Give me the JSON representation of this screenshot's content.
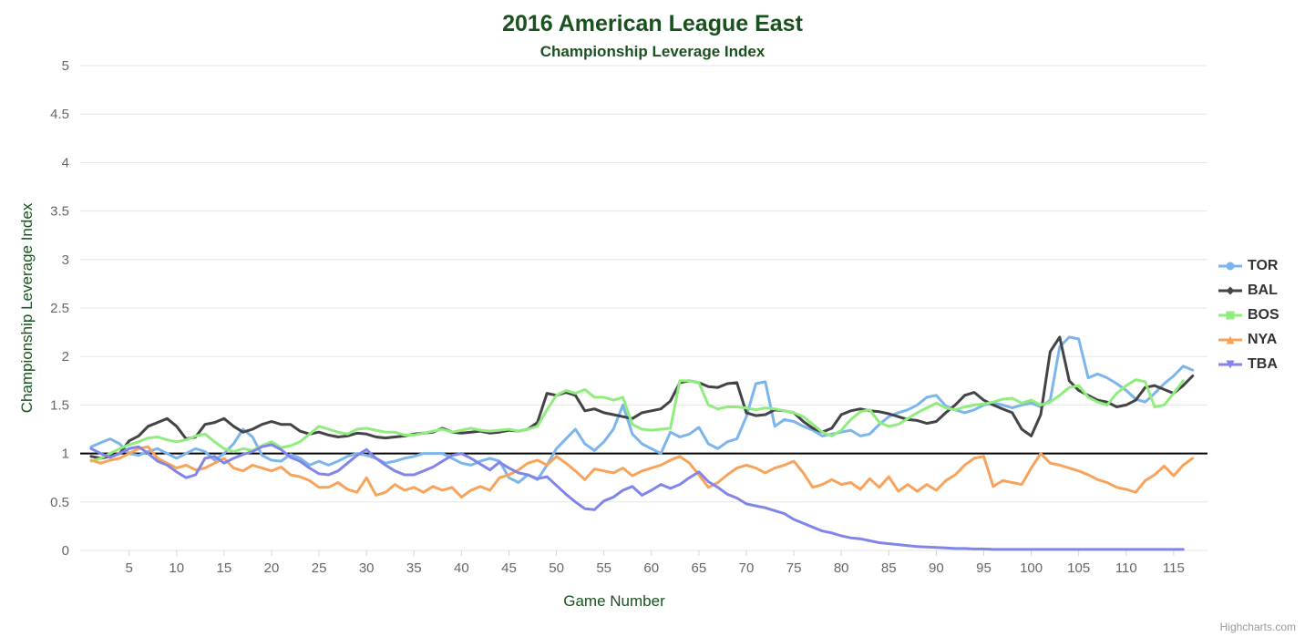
{
  "chart_data": {
    "type": "line",
    "title": "2016 American League East",
    "subtitle": "Championship Leverage Index",
    "xlabel": "Game Number",
    "ylabel": "Championship Leverage Index",
    "credit": "Highcharts.com",
    "x_start": 1,
    "x_step": 1,
    "xlim": [
      1,
      117
    ],
    "ylim": [
      0,
      5
    ],
    "x_ticks": [
      5,
      10,
      15,
      20,
      25,
      30,
      35,
      40,
      45,
      50,
      55,
      60,
      65,
      70,
      75,
      80,
      85,
      90,
      95,
      100,
      105,
      110,
      115
    ],
    "y_ticks": [
      0,
      0.5,
      1,
      1.5,
      2,
      2.5,
      3,
      3.5,
      4,
      4.5,
      5
    ],
    "grid": true,
    "legend_position": "right-middle",
    "plotline_y": 1,
    "plotline_color": "#000000",
    "grid_color": "#e6e6e6",
    "axis_color": "#ccd6eb",
    "tick_label_color": "#666666",
    "series": [
      {
        "name": "TOR",
        "color": "#7cb5ec",
        "marker": "circle",
        "values": [
          1.07,
          1.11,
          1.15,
          1.1,
          1.0,
          0.98,
          1.02,
          1.05,
          1.0,
          0.95,
          1.0,
          1.05,
          1.02,
          0.93,
          1.0,
          1.1,
          1.25,
          1.17,
          0.98,
          0.93,
          0.92,
          0.99,
          0.95,
          0.88,
          0.92,
          0.88,
          0.92,
          0.97,
          1.0,
          0.98,
          0.95,
          0.9,
          0.92,
          0.95,
          0.97,
          1.0,
          1.0,
          1.0,
          0.95,
          0.9,
          0.88,
          0.92,
          0.95,
          0.92,
          0.75,
          0.7,
          0.78,
          0.73,
          0.88,
          1.05,
          1.15,
          1.25,
          1.1,
          1.03,
          1.12,
          1.25,
          1.5,
          1.2,
          1.1,
          1.05,
          1.0,
          1.22,
          1.17,
          1.2,
          1.27,
          1.1,
          1.05,
          1.12,
          1.15,
          1.38,
          1.72,
          1.74,
          1.28,
          1.35,
          1.33,
          1.28,
          1.24,
          1.18,
          1.2,
          1.22,
          1.24,
          1.18,
          1.2,
          1.3,
          1.38,
          1.42,
          1.45,
          1.5,
          1.58,
          1.6,
          1.49,
          1.45,
          1.42,
          1.45,
          1.5,
          1.52,
          1.5,
          1.47,
          1.5,
          1.52,
          1.48,
          1.55,
          2.1,
          2.2,
          2.18,
          1.78,
          1.82,
          1.78,
          1.72,
          1.65,
          1.56,
          1.53,
          1.62,
          1.72,
          1.8,
          1.9,
          1.86
        ]
      },
      {
        "name": "BAL",
        "color": "#434348",
        "marker": "diamond",
        "values": [
          0.97,
          0.95,
          0.97,
          1.0,
          1.13,
          1.18,
          1.28,
          1.32,
          1.36,
          1.28,
          1.15,
          1.17,
          1.3,
          1.32,
          1.36,
          1.28,
          1.22,
          1.25,
          1.3,
          1.33,
          1.3,
          1.3,
          1.23,
          1.2,
          1.22,
          1.19,
          1.17,
          1.18,
          1.21,
          1.2,
          1.17,
          1.16,
          1.17,
          1.18,
          1.2,
          1.21,
          1.22,
          1.26,
          1.22,
          1.21,
          1.22,
          1.23,
          1.21,
          1.22,
          1.24,
          1.23,
          1.25,
          1.32,
          1.62,
          1.6,
          1.63,
          1.6,
          1.44,
          1.46,
          1.42,
          1.4,
          1.38,
          1.36,
          1.42,
          1.44,
          1.46,
          1.54,
          1.73,
          1.75,
          1.73,
          1.69,
          1.68,
          1.72,
          1.73,
          1.42,
          1.39,
          1.4,
          1.45,
          1.44,
          1.42,
          1.33,
          1.26,
          1.22,
          1.26,
          1.4,
          1.44,
          1.46,
          1.44,
          1.43,
          1.41,
          1.38,
          1.35,
          1.34,
          1.31,
          1.33,
          1.42,
          1.5,
          1.6,
          1.63,
          1.55,
          1.5,
          1.46,
          1.42,
          1.25,
          1.18,
          1.4,
          2.05,
          2.2,
          1.75,
          1.65,
          1.6,
          1.55,
          1.53,
          1.48,
          1.5,
          1.55,
          1.68,
          1.7,
          1.66,
          1.62,
          1.7,
          1.8
        ]
      },
      {
        "name": "BOS",
        "color": "#90ed7d",
        "marker": "square",
        "values": [
          0.92,
          0.95,
          1.0,
          1.05,
          1.09,
          1.12,
          1.16,
          1.17,
          1.14,
          1.12,
          1.14,
          1.18,
          1.2,
          1.12,
          1.05,
          1.02,
          1.05,
          1.03,
          1.08,
          1.12,
          1.06,
          1.08,
          1.12,
          1.2,
          1.28,
          1.25,
          1.22,
          1.2,
          1.25,
          1.26,
          1.24,
          1.22,
          1.22,
          1.19,
          1.19,
          1.21,
          1.23,
          1.25,
          1.22,
          1.24,
          1.26,
          1.24,
          1.23,
          1.24,
          1.25,
          1.23,
          1.25,
          1.28,
          1.45,
          1.6,
          1.65,
          1.62,
          1.66,
          1.58,
          1.58,
          1.55,
          1.58,
          1.3,
          1.25,
          1.24,
          1.25,
          1.26,
          1.75,
          1.75,
          1.73,
          1.5,
          1.46,
          1.48,
          1.48,
          1.47,
          1.45,
          1.47,
          1.46,
          1.44,
          1.42,
          1.38,
          1.3,
          1.22,
          1.18,
          1.24,
          1.35,
          1.43,
          1.45,
          1.32,
          1.28,
          1.3,
          1.36,
          1.42,
          1.47,
          1.52,
          1.47,
          1.45,
          1.48,
          1.5,
          1.51,
          1.53,
          1.56,
          1.57,
          1.52,
          1.55,
          1.5,
          1.53,
          1.6,
          1.68,
          1.7,
          1.58,
          1.53,
          1.5,
          1.62,
          1.7,
          1.76,
          1.74,
          1.48,
          1.5,
          1.62,
          1.75
        ]
      },
      {
        "name": "NYA",
        "color": "#f7a35c",
        "marker": "triangle",
        "values": [
          0.93,
          0.9,
          0.93,
          0.95,
          1.0,
          1.05,
          1.07,
          0.95,
          0.9,
          0.85,
          0.88,
          0.83,
          0.85,
          0.9,
          0.95,
          0.85,
          0.82,
          0.88,
          0.85,
          0.82,
          0.86,
          0.78,
          0.76,
          0.72,
          0.65,
          0.65,
          0.7,
          0.63,
          0.6,
          0.75,
          0.57,
          0.6,
          0.68,
          0.62,
          0.65,
          0.6,
          0.66,
          0.62,
          0.65,
          0.55,
          0.62,
          0.66,
          0.62,
          0.75,
          0.78,
          0.83,
          0.9,
          0.93,
          0.88,
          0.97,
          0.9,
          0.82,
          0.73,
          0.84,
          0.82,
          0.8,
          0.85,
          0.77,
          0.82,
          0.85,
          0.88,
          0.93,
          0.97,
          0.9,
          0.78,
          0.65,
          0.7,
          0.78,
          0.85,
          0.88,
          0.85,
          0.8,
          0.85,
          0.88,
          0.92,
          0.8,
          0.65,
          0.68,
          0.73,
          0.68,
          0.7,
          0.63,
          0.74,
          0.65,
          0.76,
          0.61,
          0.68,
          0.61,
          0.68,
          0.62,
          0.72,
          0.78,
          0.88,
          0.95,
          0.97,
          0.66,
          0.72,
          0.7,
          0.68,
          0.85,
          1.0,
          0.9,
          0.88,
          0.85,
          0.82,
          0.78,
          0.73,
          0.7,
          0.65,
          0.63,
          0.6,
          0.72,
          0.78,
          0.87,
          0.77,
          0.88,
          0.95
        ]
      },
      {
        "name": "TBA",
        "color": "#8085e9",
        "marker": "triangle-down",
        "values": [
          1.05,
          1.0,
          0.96,
          1.0,
          1.05,
          1.07,
          1.0,
          0.92,
          0.88,
          0.81,
          0.75,
          0.78,
          0.95,
          0.97,
          0.9,
          0.95,
          0.99,
          1.02,
          1.07,
          1.09,
          1.04,
          0.96,
          0.92,
          0.85,
          0.79,
          0.78,
          0.82,
          0.9,
          0.98,
          1.04,
          0.95,
          0.88,
          0.82,
          0.78,
          0.78,
          0.82,
          0.86,
          0.92,
          0.98,
          1.0,
          0.95,
          0.89,
          0.83,
          0.91,
          0.85,
          0.8,
          0.78,
          0.74,
          0.76,
          0.67,
          0.58,
          0.5,
          0.43,
          0.42,
          0.51,
          0.55,
          0.62,
          0.66,
          0.57,
          0.62,
          0.68,
          0.64,
          0.68,
          0.75,
          0.81,
          0.71,
          0.65,
          0.58,
          0.54,
          0.48,
          0.46,
          0.44,
          0.41,
          0.38,
          0.32,
          0.28,
          0.24,
          0.2,
          0.18,
          0.15,
          0.13,
          0.12,
          0.1,
          0.08,
          0.07,
          0.06,
          0.05,
          0.04,
          0.035,
          0.03,
          0.025,
          0.02,
          0.02,
          0.015,
          0.015,
          0.01,
          0.01,
          0.01,
          0.01,
          0.01,
          0.01,
          0.01,
          0.01,
          0.01,
          0.01,
          0.01,
          0.01,
          0.01,
          0.01,
          0.01,
          0.01,
          0.01,
          0.01,
          0.01,
          0.01,
          0.01
        ]
      }
    ]
  }
}
